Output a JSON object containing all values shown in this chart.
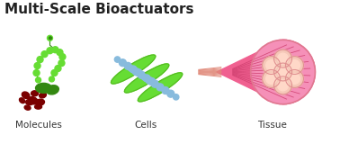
{
  "title": "Multi-Scale Bioactuators",
  "title_fontsize": 11,
  "title_color": "#222222",
  "labels": [
    "Molecules",
    "Cells",
    "Tissue"
  ],
  "label_color": "#333333",
  "label_fontsize": 7.5,
  "bg_color": "#ffffff",
  "green_light": "#66dd33",
  "green_mid": "#55bb22",
  "green_dark": "#338811",
  "red_dark": "#7a0000",
  "blue_dot": "#88bbdd",
  "pink_hot": "#f050a0",
  "pink_bright": "#f06090",
  "pink_pale": "#f5b0c0",
  "peach": "#f5c8b8",
  "salmon_line": "#e08878"
}
